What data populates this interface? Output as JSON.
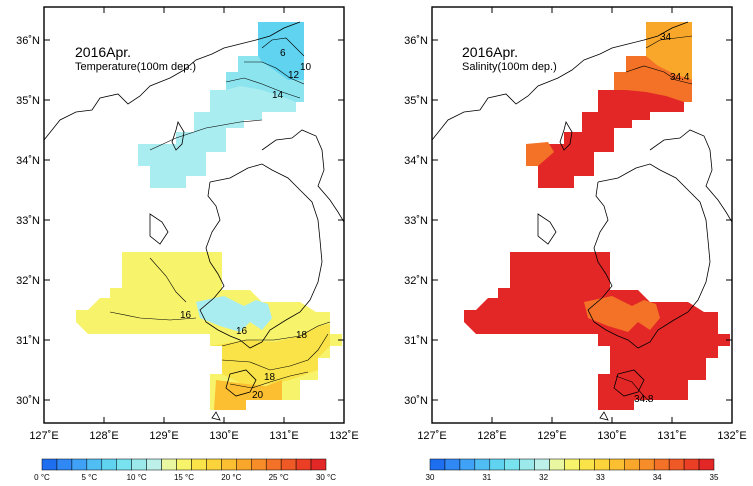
{
  "temperature_panel": {
    "title": "2016Apr.",
    "subtitle": "Temperature(100m dep.)",
    "colorbar": {
      "colors": [
        "#1e6ff0",
        "#2f88f4",
        "#3fa2f6",
        "#50bdf3",
        "#5fd3ef",
        "#78e2ef",
        "#9be9ea",
        "#bdf0e8",
        "#e8f7a0",
        "#f7f36b",
        "#fae348",
        "#fbd33b",
        "#fbbf31",
        "#f9a72b",
        "#f68d29",
        "#f37227",
        "#ef5925",
        "#ea3f25",
        "#e32726"
      ],
      "labels": [
        "0 °C",
        "5 °C",
        "10 °C",
        "15 °C",
        "20 °C",
        "25 °C",
        "30 °C"
      ]
    },
    "contour_labels": [
      "6",
      "10",
      "12",
      "14",
      "16",
      "16",
      "18",
      "18",
      "20"
    ]
  },
  "salinity_panel": {
    "title": "2016Apr.",
    "subtitle": "Salinity(100m dep.)",
    "colorbar": {
      "colors": [
        "#1e6ff0",
        "#2f88f4",
        "#3fa2f6",
        "#50bdf3",
        "#5fd3ef",
        "#78e2ef",
        "#9be9ea",
        "#bdf0e8",
        "#e8f7a0",
        "#f7f36b",
        "#fae348",
        "#fbd33b",
        "#fbbf31",
        "#f9a72b",
        "#f68d29",
        "#f37227",
        "#ef5925",
        "#ea3f25",
        "#e32726"
      ],
      "labels": [
        "30",
        "31",
        "32",
        "33",
        "34",
        "35"
      ]
    },
    "contour_labels": [
      "34",
      "34.4",
      "34.8"
    ]
  },
  "axes": {
    "lon_labels": [
      "127˚E",
      "128˚E",
      "129˚E",
      "130˚E",
      "131˚E",
      "132˚E"
    ],
    "lat_labels": [
      "30˚N",
      "31˚N",
      "32˚N",
      "33˚N",
      "34˚N",
      "35˚N",
      "36˚N"
    ]
  }
}
